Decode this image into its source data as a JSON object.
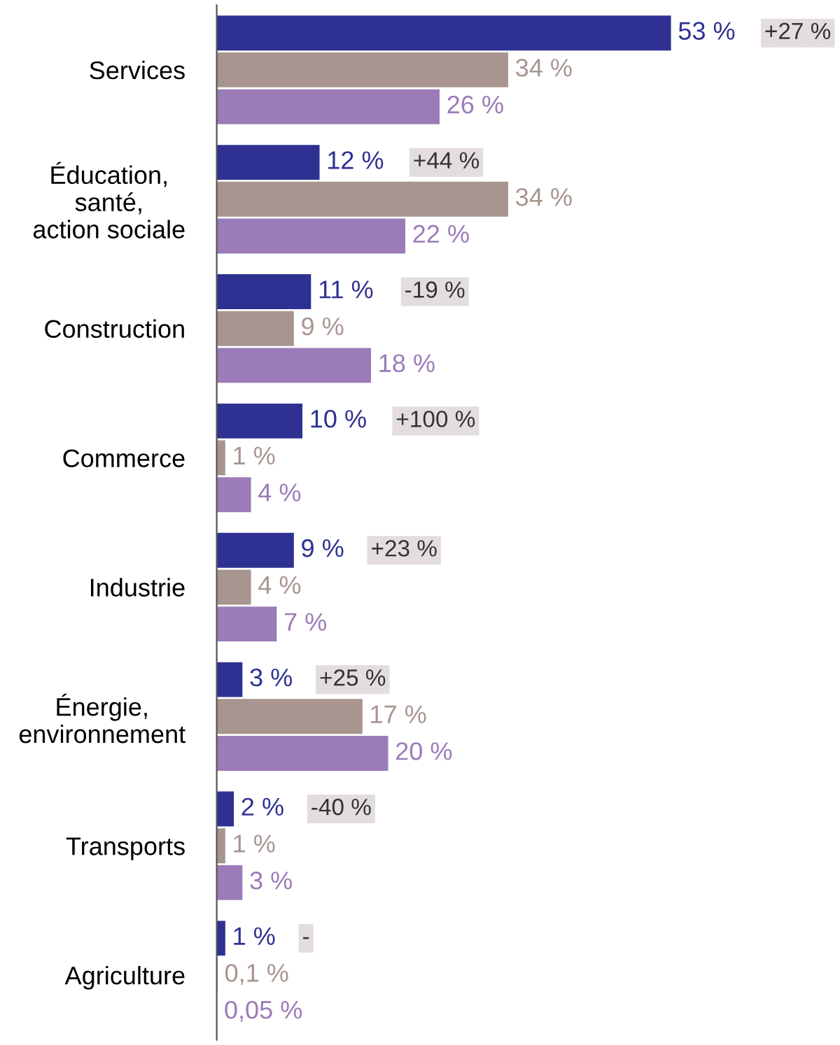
{
  "chart_data": {
    "type": "bar",
    "orientation": "horizontal",
    "tick_labels": "y",
    "grid": false,
    "legend": false,
    "categories": [
      "Services",
      "Éducation,\nsanté,\naction sociale",
      "Construction",
      "Commerce",
      "Industrie",
      "Énergie,\nenvironnement",
      "Transports",
      "Agriculture"
    ],
    "series": [
      {
        "color": "#2e3192",
        "values": [
          53,
          12,
          11,
          10,
          9,
          3,
          2,
          1
        ],
        "value_labels": [
          "53 %",
          "12 %",
          "11 %",
          "10 %",
          "9 %",
          "3 %",
          "2 %",
          "1 %"
        ]
      },
      {
        "color": "#a89590",
        "values": [
          34,
          34,
          9,
          1,
          4,
          17,
          1,
          0.1
        ],
        "value_labels": [
          "34 %",
          "34 %",
          "9 %",
          "1 %",
          "4 %",
          "17 %",
          "1 %",
          "0,1 %"
        ]
      },
      {
        "color": "#9b7bb8",
        "values": [
          26,
          22,
          18,
          4,
          7,
          20,
          3,
          0.05
        ],
        "value_labels": [
          "26 %",
          "22 %",
          "18 %",
          "4 %",
          "7 %",
          "20 %",
          "3 %",
          "0,05 %"
        ]
      }
    ],
    "annotations": [
      "+27 %",
      "+44 %",
      "-19 %",
      "+100 %",
      "+23 %",
      "+25 %",
      "-40 %",
      "-"
    ]
  }
}
